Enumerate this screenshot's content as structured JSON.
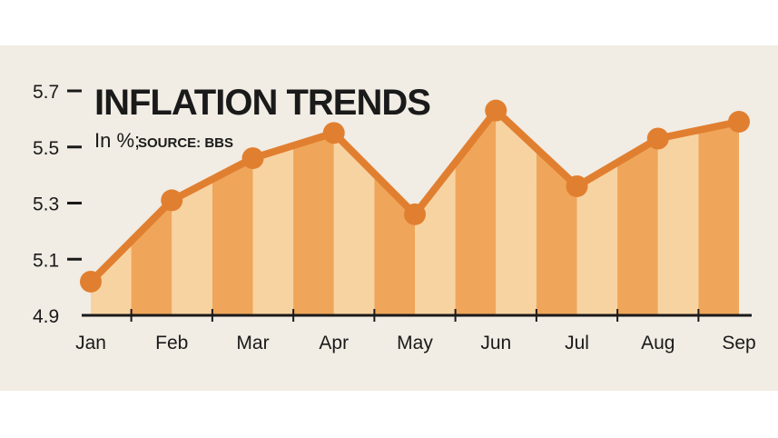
{
  "chart_data": {
    "type": "line",
    "title": "INFLATION TRENDS",
    "unit_label": "In %;",
    "source_label": "SOURCE: BBS",
    "categories": [
      "Jan",
      "Feb",
      "Mar",
      "Apr",
      "May",
      "Jun",
      "Jul",
      "Aug",
      "Sep"
    ],
    "series": [
      {
        "values": [
          5.02,
          5.31,
          5.46,
          5.55,
          5.26,
          5.63,
          5.36,
          5.53,
          5.59
        ]
      }
    ],
    "ylim": [
      4.9,
      5.7
    ],
    "yticks": [
      "4.9",
      "5.1",
      "5.3",
      "5.5",
      "5.7"
    ],
    "grid": false,
    "legend": "none"
  },
  "colors": {
    "line": "#e17f30",
    "marker": "#e17f30",
    "stripe_dark": "#efa65a",
    "stripe_light": "#f8d3a2",
    "background": "#f1ece4",
    "axis": "#1a1a1a"
  }
}
